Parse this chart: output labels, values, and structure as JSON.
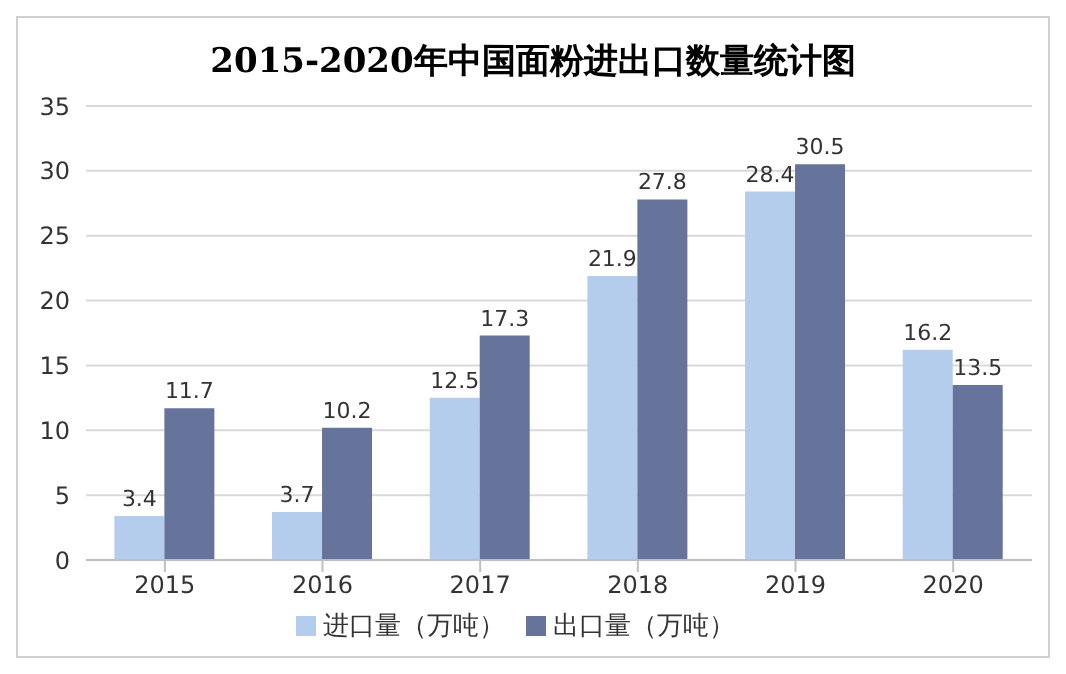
{
  "chart_data": {
    "type": "bar",
    "title": "2015-2020年中国面粉进出口数量统计图",
    "categories": [
      "2015",
      "2016",
      "2017",
      "2018",
      "2019",
      "2020"
    ],
    "series": [
      {
        "name": "进口量（万吨）",
        "color": "#b4cdec",
        "values": [
          3.4,
          3.7,
          12.5,
          21.9,
          28.4,
          16.2
        ]
      },
      {
        "name": "出口量（万吨）",
        "color": "#66739a",
        "values": [
          11.7,
          10.2,
          17.3,
          27.8,
          30.5,
          13.5
        ]
      }
    ],
    "ylim": [
      0,
      35
    ],
    "yticks": [
      0,
      5,
      10,
      15,
      20,
      25,
      30,
      35
    ],
    "grid": "y",
    "legend": "bottom",
    "data_labels": true
  }
}
